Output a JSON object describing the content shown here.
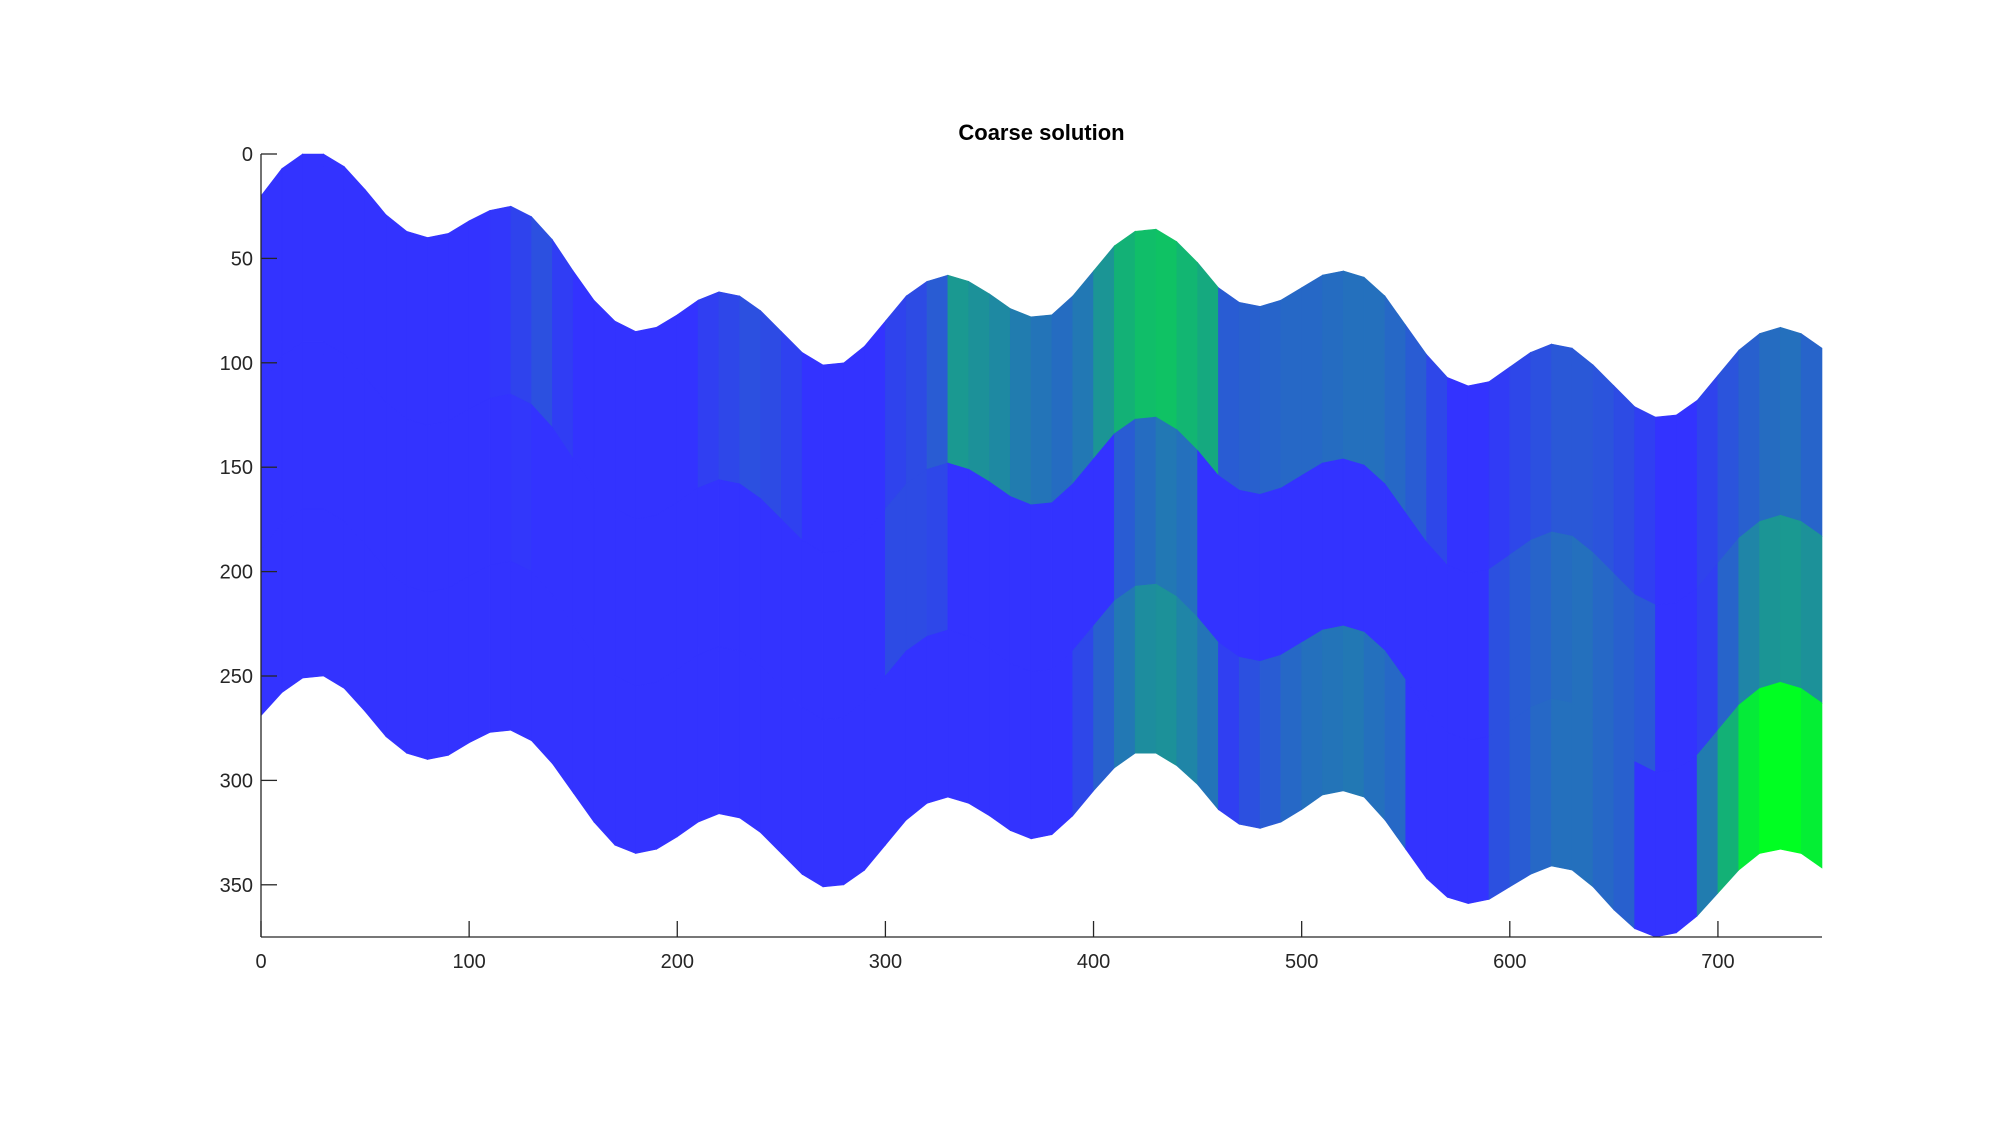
{
  "chart_data": {
    "type": "heatmap",
    "title": "Coarse solution",
    "xlabel": "",
    "ylabel": "",
    "xlim": [
      0,
      750
    ],
    "ylim": [
      0,
      375
    ],
    "y_reversed": true,
    "xticks": [
      0,
      100,
      200,
      300,
      400,
      500,
      600,
      700
    ],
    "yticks": [
      0,
      50,
      100,
      150,
      200,
      250,
      300,
      350
    ],
    "grid": false,
    "colormap": {
      "low": "#3333ff",
      "high": "#00ff22"
    },
    "column_width": 10,
    "columns_x": [
      0,
      10,
      20,
      30,
      40,
      50,
      60,
      70,
      80,
      90,
      100,
      110,
      120,
      130,
      140,
      150,
      160,
      170,
      180,
      190,
      200,
      210,
      220,
      230,
      240,
      250,
      260,
      270,
      280,
      290,
      300,
      310,
      320,
      330,
      340,
      350,
      360,
      370,
      380,
      390,
      400,
      410,
      420,
      430,
      440,
      450,
      460,
      470,
      480,
      490,
      500,
      510,
      520,
      530,
      540,
      550,
      560,
      570,
      580,
      590,
      600,
      610,
      620,
      630,
      640,
      650,
      660,
      670,
      680,
      690,
      700,
      710,
      720,
      730,
      740,
      750
    ],
    "surface_top": [
      20,
      7,
      0,
      0,
      6,
      17,
      29,
      37,
      40,
      38,
      32,
      27,
      25,
      30,
      41,
      56,
      70,
      80,
      85,
      83,
      77,
      70,
      66,
      68,
      75,
      85,
      95,
      101,
      100,
      92,
      80,
      68,
      61,
      58,
      61,
      67,
      74,
      78,
      77,
      68,
      56,
      44,
      37,
      36,
      42,
      52,
      64,
      71,
      73,
      70,
      64,
      58,
      56,
      59,
      68,
      82,
      96,
      107,
      111,
      109,
      102,
      95,
      91,
      93,
      101,
      111,
      121,
      126,
      125,
      118,
      106,
      94,
      86,
      83,
      86,
      93
    ],
    "bottom": [
      269,
      258,
      251,
      250,
      256,
      267,
      279,
      287,
      290,
      288,
      282,
      277,
      276,
      281,
      292,
      306,
      320,
      331,
      335,
      333,
      327,
      320,
      316,
      318,
      325,
      335,
      345,
      351,
      350,
      343,
      331,
      319,
      311,
      308,
      311,
      317,
      324,
      328,
      326,
      317,
      305,
      294,
      287,
      287,
      293,
      302,
      314,
      321,
      323,
      320,
      314,
      307,
      305,
      308,
      319,
      333,
      347,
      356,
      359,
      357,
      351,
      345,
      341,
      343,
      351,
      362,
      371,
      375,
      373,
      365,
      354,
      343,
      335,
      333,
      335,
      342
    ],
    "boundary_1_offset": 90,
    "boundary_2_offset": 170,
    "layers": [
      {
        "name": "",
        "values": [
          0.0,
          0.0,
          0.0,
          0.0,
          0.0,
          0.0,
          0.0,
          0.0,
          0.0,
          0.0,
          0.0,
          0.02,
          0.08,
          0.14,
          0.05,
          0.0,
          0.0,
          0.0,
          0.0,
          0.0,
          0.0,
          0.06,
          0.1,
          0.14,
          0.12,
          0.07,
          0.0,
          0.0,
          0.0,
          0.0,
          0.08,
          0.12,
          0.2,
          0.5,
          0.46,
          0.42,
          0.36,
          0.32,
          0.28,
          0.34,
          0.48,
          0.62,
          0.68,
          0.7,
          0.64,
          0.58,
          0.2,
          0.22,
          0.24,
          0.26,
          0.26,
          0.28,
          0.3,
          0.3,
          0.26,
          0.2,
          0.1,
          0.0,
          0.0,
          0.04,
          0.1,
          0.14,
          0.18,
          0.18,
          0.16,
          0.12,
          0.06,
          0.0,
          0.0,
          0.08,
          0.16,
          0.22,
          0.28,
          0.3,
          0.24,
          0.18
        ]
      },
      {
        "name": "",
        "values": [
          0.0,
          0.0,
          0.0,
          0.0,
          0.0,
          0.0,
          0.0,
          0.0,
          0.0,
          0.0,
          0.0,
          0.0,
          0.02,
          0.0,
          0.0,
          0.0,
          0.0,
          0.0,
          0.0,
          0.0,
          0.0,
          0.0,
          0.0,
          0.0,
          0.0,
          0.0,
          0.0,
          0.0,
          0.0,
          0.0,
          0.12,
          0.12,
          0.1,
          0.0,
          0.0,
          0.0,
          0.0,
          0.0,
          0.0,
          0.0,
          0.0,
          0.2,
          0.28,
          0.34,
          0.3,
          0.0,
          0.0,
          0.0,
          0.0,
          0.0,
          0.0,
          0.0,
          0.0,
          0.0,
          0.0,
          0.0,
          0.0,
          0.0,
          0.0,
          0.14,
          0.2,
          0.24,
          0.28,
          0.3,
          0.26,
          0.22,
          0.18,
          0.0,
          0.0,
          0.06,
          0.24,
          0.4,
          0.48,
          0.5,
          0.46,
          0.42
        ]
      },
      {
        "name": "",
        "values": [
          0.0,
          0.0,
          0.0,
          0.0,
          0.0,
          0.0,
          0.0,
          0.0,
          0.0,
          0.0,
          0.0,
          0.0,
          0.0,
          0.0,
          0.0,
          0.0,
          0.0,
          0.0,
          0.0,
          0.0,
          0.0,
          0.0,
          0.0,
          0.0,
          0.0,
          0.0,
          0.0,
          0.0,
          0.0,
          0.0,
          0.0,
          0.0,
          0.0,
          0.0,
          0.0,
          0.0,
          0.0,
          0.0,
          0.0,
          0.1,
          0.22,
          0.34,
          0.44,
          0.46,
          0.4,
          0.32,
          0.06,
          0.14,
          0.2,
          0.26,
          0.3,
          0.32,
          0.34,
          0.3,
          0.26,
          0.0,
          0.0,
          0.0,
          0.0,
          0.14,
          0.2,
          0.26,
          0.3,
          0.3,
          0.26,
          0.22,
          0.0,
          0.0,
          0.0,
          0.36,
          0.62,
          0.9,
          1.0,
          1.0,
          0.92,
          0.84
        ]
      }
    ]
  }
}
